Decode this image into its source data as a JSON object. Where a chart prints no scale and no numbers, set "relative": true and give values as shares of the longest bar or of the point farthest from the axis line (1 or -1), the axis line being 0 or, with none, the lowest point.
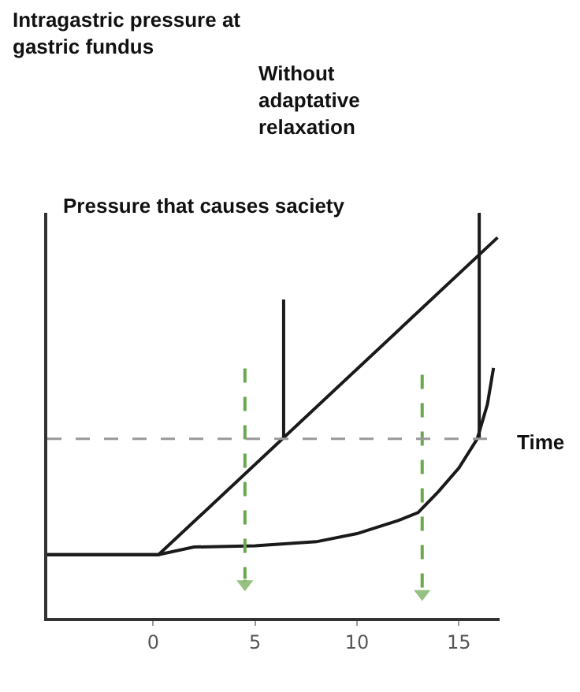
{
  "chart_data": {
    "type": "line",
    "title": "Intragastric pressure at gastric fundus",
    "xlabel": "Time",
    "relative": true,
    "tick_labels": "x",
    "legend": false,
    "grid": false,
    "annotations": [
      "Pressure that causes saciety"
    ],
    "xlim": [
      -5.2,
      17
    ],
    "xticks": [
      0,
      5,
      10,
      15
    ],
    "ref_lines": [
      {
        "axis": "y",
        "value": 0.442,
        "color": "#999999",
        "line_style": "dashed"
      }
    ],
    "series": [
      {
        "name": "Without adaptative relaxation",
        "color": "#1a1a1a",
        "x": [
          -5.2,
          0.26,
          16.9
        ],
        "values": [
          0.156,
          0.156,
          0.939
        ]
      },
      {
        "color": "#1a1a1a",
        "x": [
          -5.2,
          0.26,
          2,
          5,
          8,
          10,
          12,
          13,
          14,
          15,
          15.9,
          16.4,
          16.7
        ],
        "values": [
          0.156,
          0.156,
          0.175,
          0.178,
          0.188,
          0.208,
          0.24,
          0.26,
          0.312,
          0.37,
          0.442,
          0.527,
          0.617
        ]
      },
      {
        "color": "#1a1a1a",
        "x": [
          6.4,
          6.4
        ],
        "values": [
          0.442,
          0.786
        ]
      },
      {
        "color": "#1a1a1a",
        "x": [
          16.0,
          16.0
        ],
        "values": [
          0.442,
          1
        ]
      },
      {
        "color": "#6aa84f",
        "line_style": "dashed",
        "marker": "triangle",
        "x": [
          4.5,
          4.5
        ],
        "values": [
          0.616,
          0.084
        ]
      },
      {
        "color": "#6aa84f",
        "line_style": "dashed",
        "marker": "triangle",
        "x": [
          13.2,
          13.2
        ],
        "values": [
          0.6,
          0.06
        ]
      }
    ]
  }
}
